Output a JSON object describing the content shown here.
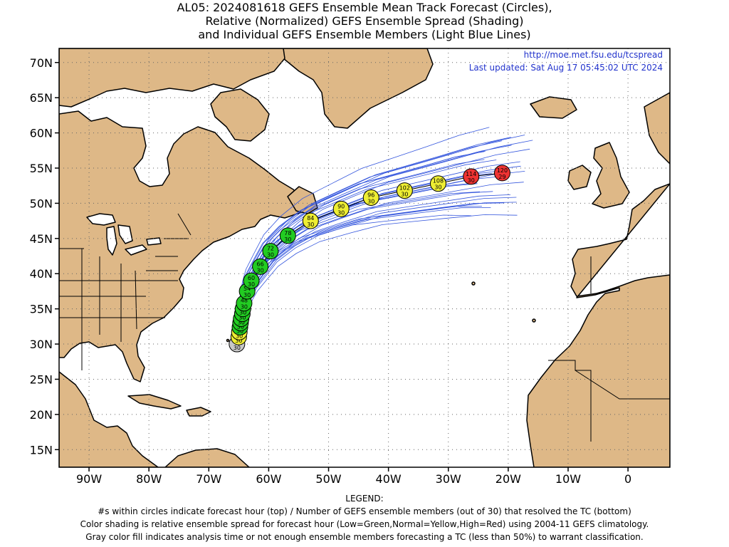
{
  "title": {
    "line1": "AL05: 2024081618 GEFS Ensemble Mean Track Forecast (Circles),",
    "line2": "Relative (Normalized) GEFS Ensemble Spread (Shading)",
    "line3": "and Individual GEFS Ensemble Members (Light Blue Lines)"
  },
  "credits": {
    "url": "http://moe.met.fsu.edu/tcspread",
    "updated": "Last updated: Sat Aug 17 05:45:02 UTC 2024"
  },
  "colors": {
    "land": "#deb887",
    "ocean": "#ffffff",
    "coast": "#000000",
    "member_line": "#3355dd",
    "credit_text": "#2233cc",
    "low_spread": "#22cc22",
    "normal_spread": "#eeee33",
    "high_spread": "#ee3333",
    "unclassified": "#c8c8c8"
  },
  "map": {
    "lon_range": [
      -95,
      7
    ],
    "lat_range": [
      12.5,
      72
    ],
    "lat_labels": [
      "70N",
      "65N",
      "60N",
      "55N",
      "50N",
      "45N",
      "40N",
      "35N",
      "30N",
      "25N",
      "20N",
      "15N"
    ],
    "lon_labels": [
      "90W",
      "80W",
      "70W",
      "60W",
      "50W",
      "40W",
      "30W",
      "20W",
      "10W",
      "0"
    ]
  },
  "track": [
    {
      "hour": "0",
      "members": "30",
      "lon": -65.3,
      "lat": 30.0,
      "cat": "gray"
    },
    {
      "hour": "6",
      "members": "30",
      "lon": -65.0,
      "lat": 31.0,
      "cat": "yellow"
    },
    {
      "hour": "12",
      "members": "30",
      "lon": -64.9,
      "lat": 31.7,
      "cat": "yellow"
    },
    {
      "hour": "18",
      "members": "30",
      "lon": -64.8,
      "lat": 32.4,
      "cat": "green"
    },
    {
      "hour": "24",
      "members": "30",
      "lon": -64.7,
      "lat": 33.0,
      "cat": "green"
    },
    {
      "hour": "30",
      "members": "30",
      "lon": -64.6,
      "lat": 33.6,
      "cat": "green"
    },
    {
      "hour": "36",
      "members": "30",
      "lon": -64.4,
      "lat": 34.3,
      "cat": "green"
    },
    {
      "hour": "42",
      "members": "30",
      "lon": -64.3,
      "lat": 35.0,
      "cat": "green"
    },
    {
      "hour": "48",
      "members": "30",
      "lon": -64.1,
      "lat": 35.8,
      "cat": "green"
    },
    {
      "hour": "54",
      "members": "30",
      "lon": -63.6,
      "lat": 37.5,
      "cat": "green"
    },
    {
      "hour": "60",
      "members": "30",
      "lon": -62.9,
      "lat": 39.0,
      "cat": "green"
    },
    {
      "hour": "66",
      "members": "30",
      "lon": -61.4,
      "lat": 41.0,
      "cat": "green"
    },
    {
      "hour": "72",
      "members": "30",
      "lon": -59.7,
      "lat": 43.2,
      "cat": "green"
    },
    {
      "hour": "78",
      "members": "30",
      "lon": -56.8,
      "lat": 45.4,
      "cat": "green"
    },
    {
      "hour": "84",
      "members": "30",
      "lon": -53.0,
      "lat": 47.5,
      "cat": "yellow"
    },
    {
      "hour": "90",
      "members": "30",
      "lon": -47.9,
      "lat": 49.2,
      "cat": "yellow"
    },
    {
      "hour": "96",
      "members": "30",
      "lon": -42.9,
      "lat": 50.8,
      "cat": "yellow"
    },
    {
      "hour": "102",
      "members": "30",
      "lon": -37.3,
      "lat": 51.8,
      "cat": "yellow"
    },
    {
      "hour": "108",
      "members": "30",
      "lon": -31.7,
      "lat": 52.8,
      "cat": "yellow"
    },
    {
      "hour": "114",
      "members": "30",
      "lon": -26.2,
      "lat": 53.8,
      "cat": "red"
    },
    {
      "hour": "120",
      "members": "29",
      "lon": -21.0,
      "lat": 54.3,
      "cat": "red"
    }
  ],
  "legend": {
    "heading": "LEGEND:",
    "line1": "#s within circles indicate forecast hour (top) / Number of GEFS ensemble members (out of 30) that resolved the TC (bottom)",
    "line2": "Color shading is relative ensemble spread for forecast hour (Low=Green,Normal=Yellow,High=Red) using 2004-11 GEFS climatology.",
    "line3": "Gray color fill indicates analysis time or not enough ensemble members forecasting a TC (less than 50%) to warrant classification."
  }
}
